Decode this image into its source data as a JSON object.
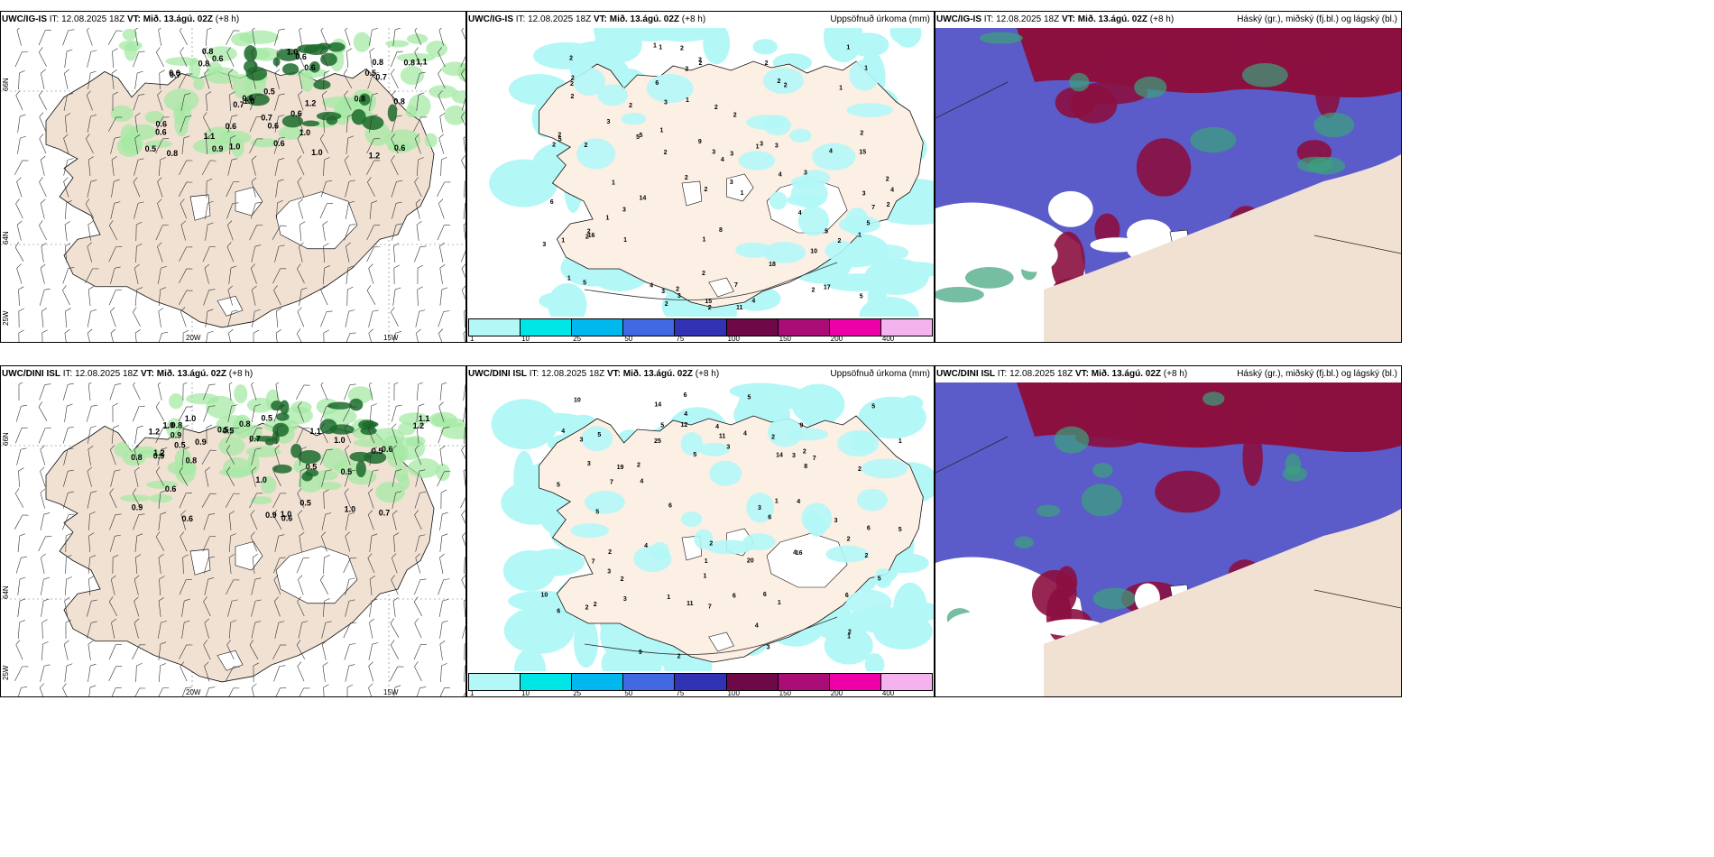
{
  "rows": [
    {
      "model": "UWC/IG-IS",
      "it": "12.08.2025 18Z",
      "vt": "Mið. 13.ágú. 02Z",
      "lead": "(+8 h)",
      "wind_values": [
        "0.8",
        "0.8",
        "1.0",
        "1.2",
        "0.6",
        "0.7",
        "1.2",
        "0.9",
        "0.6",
        "0.8",
        "0.5",
        "0.6",
        "0.6",
        "1.1",
        "1.0",
        "0.6",
        "0.8",
        "0.7",
        "1.0",
        "1.0",
        "0.6",
        "0.6",
        "0.8",
        "0.5",
        "0.7",
        "0.6",
        "1.1",
        "0.5",
        "0.7",
        "0.8",
        "0.6",
        "0.6",
        "0.6",
        "0.8",
        "1.0",
        "0.6"
      ],
      "precip_values": [
        "2",
        "2",
        "3",
        "3",
        "1",
        "3",
        "4",
        "5",
        "1",
        "2",
        "3",
        "6",
        "9",
        "7",
        "3",
        "5",
        "4",
        "5",
        "15",
        "15",
        "8",
        "17",
        "11",
        "18",
        "2",
        "4",
        "3",
        "10",
        "4",
        "1",
        "5",
        "2",
        "2",
        "2",
        "1",
        "1",
        "2",
        "2",
        "1",
        "1",
        "4",
        "1",
        "1",
        "2",
        "3",
        "2",
        "2",
        "2",
        "1",
        "1",
        "2",
        "1",
        "1",
        "2",
        "2",
        "1",
        "2",
        "3",
        "3",
        "3",
        "5",
        "3",
        "4",
        "2",
        "16",
        "4",
        "5",
        "6",
        "7",
        "5",
        "14",
        "2",
        "2",
        "1",
        "1",
        "2",
        "2",
        "3",
        "3",
        "2",
        "2",
        "2",
        "2",
        "2",
        "2",
        "2",
        "2",
        "2"
      ]
    },
    {
      "model": "UWC/DINI ISL",
      "it": "12.08.2025 18Z",
      "vt": "Mið. 13.ágú. 02Z",
      "lead": "(+8 h)",
      "wind_values": [
        "0.6",
        "0.9",
        "0.9",
        "1.0",
        "0.5",
        "0.9",
        "1.1",
        "0.6",
        "1.0",
        "0.8",
        "0.8",
        "1.2",
        "0.5",
        "1.2",
        "0.9",
        "0.6",
        "1.0",
        "0.5",
        "1.0",
        "0.7",
        "0.5",
        "0.5",
        "0.8",
        "1.1",
        "0.8",
        "1.0",
        "0.6",
        "0.5",
        "0.7",
        "0.5",
        "1.2",
        "0.5",
        "1.0",
        "0.9"
      ],
      "precip_values": [
        "2",
        "3",
        "1",
        "4",
        "4",
        "5",
        "6",
        "4",
        "11",
        "12",
        "11",
        "10",
        "16",
        "20",
        "4",
        "6",
        "6",
        "14",
        "25",
        "19",
        "7",
        "9",
        "1",
        "5",
        "3",
        "2",
        "2",
        "5",
        "5",
        "6",
        "7",
        "6",
        "8",
        "3",
        "3",
        "9",
        "5",
        "5",
        "7",
        "5",
        "1",
        "5",
        "2",
        "4",
        "3",
        "4",
        "3",
        "6",
        "2",
        "3",
        "2",
        "2",
        "2",
        "1",
        "2",
        "3",
        "4",
        "4",
        "6",
        "4",
        "10",
        "14",
        "7",
        "3",
        "5",
        "6",
        "2",
        "1",
        "2",
        "2",
        "1",
        "1",
        "2"
      ]
    }
  ],
  "precip_title": "Uppsöfnuð úrkoma (mm)",
  "cloud_title": "Háský (gr.), miðský (fj.bl.) og lágský (bl.)",
  "labels": {
    "it": "IT:",
    "vt": "VT:"
  },
  "axis": {
    "lat66": "66N",
    "lat64": "64N",
    "lon25": "25W",
    "lon20": "20W",
    "lon15": "15W"
  },
  "colorbar": {
    "ticks": [
      "1",
      "10",
      "25",
      "50",
      "75",
      "100",
      "150",
      "200",
      "400"
    ],
    "colors": [
      "#b3f7f7",
      "#00e5e5",
      "#00b7ee",
      "#4169e1",
      "#3232b4",
      "#6e0846",
      "#aa0d76",
      "#ee00a8",
      "#f5b3ee"
    ]
  },
  "colors": {
    "land": "#f0e1d3",
    "sea": "#ffffff",
    "wind_light": "#a6e9a4",
    "wind_dark": "#1b6b2b",
    "precip": "#b3f7f7",
    "cloud_low": "#5b5bc9",
    "cloud_mid": "#8b1040",
    "cloud_high": "#3aa37a"
  }
}
